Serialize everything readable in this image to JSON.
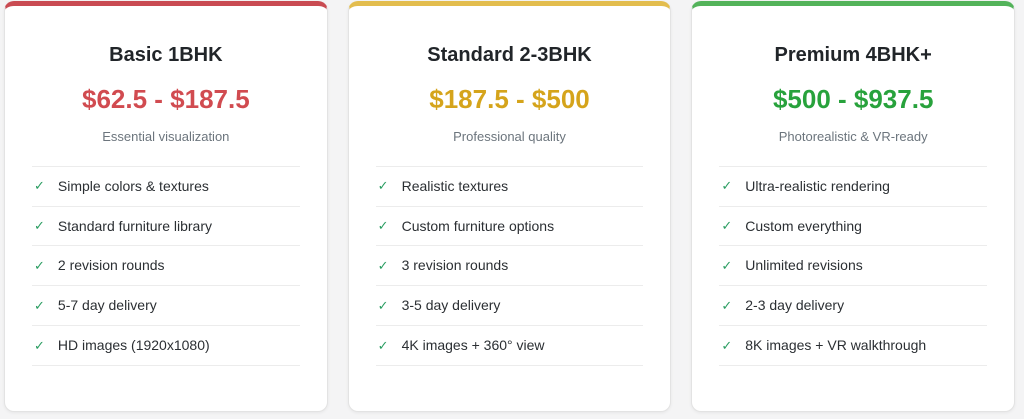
{
  "icons": {
    "check": "✓"
  },
  "theme": {
    "page_background": "#f4f4f5",
    "card_background": "#ffffff",
    "card_border": "#e3e3e3",
    "divider": "#ececec",
    "title_color": "#212529",
    "tagline_color": "#6c757d",
    "feature_text_color": "#2b2f33",
    "check_color": "#2a9d61"
  },
  "cards": [
    {
      "title": "Basic 1BHK",
      "price_range": "$62.5 - $187.5",
      "tagline": "Essential visualization",
      "bar_color": "#c94b52",
      "price_color": "#d14b50",
      "features": [
        "Simple colors & textures",
        "Standard furniture library",
        "2 revision rounds",
        "5-7 day delivery",
        "HD images (1920x1080)"
      ]
    },
    {
      "title": "Standard 2-3BHK",
      "price_range": "$187.5 - $500",
      "tagline": "Professional quality",
      "bar_color": "#e3bd4e",
      "price_color": "#d5a41b",
      "features": [
        "Realistic textures",
        "Custom furniture options",
        "3 revision rounds",
        "3-5 day delivery",
        "4K images + 360° view"
      ]
    },
    {
      "title": "Premium 4BHK+",
      "price_range": "$500 - $937.5",
      "tagline": "Photorealistic & VR-ready",
      "bar_color": "#53b35a",
      "price_color": "#28a23c",
      "features": [
        "Ultra-realistic rendering",
        "Custom everything",
        "Unlimited revisions",
        "2-3 day delivery",
        "8K images + VR walkthrough"
      ]
    }
  ]
}
